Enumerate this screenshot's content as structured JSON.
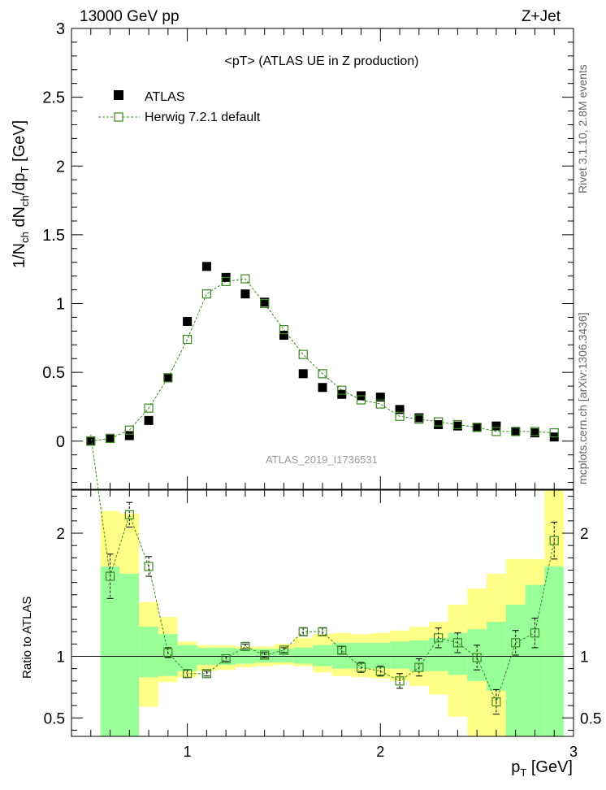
{
  "header": {
    "left_label": "13000 GeV pp",
    "right_label": "Z+Jet"
  },
  "side_labels": {
    "rivet": "Rivet 3.1.10, 2.8M events",
    "mcplots": "mcplots.cern.ch [arXiv:1306.3436]"
  },
  "chart_data": [
    {
      "type": "scatter",
      "title": "<pT> (ATLAS UE in Z production)",
      "ylabel": "1/N_ch dN_ch/dp_T [GeV]",
      "xlabel": "",
      "watermark": "ATLAS_2019_I1736531",
      "xlim": [
        0.4,
        3.0
      ],
      "ylim": [
        -0.35,
        3.0
      ],
      "yticks": [
        0,
        0.5,
        1,
        1.5,
        2,
        2.5,
        3
      ],
      "ytick_labels": [
        "0",
        "0.5",
        "1",
        "1.5",
        "2",
        "2.5",
        "3"
      ],
      "legend_position": "top-left",
      "series": [
        {
          "name": "ATLAS",
          "marker": "filled-square",
          "color": "#000000",
          "x": [
            0.5,
            0.6,
            0.7,
            0.8,
            0.9,
            1.0,
            1.1,
            1.2,
            1.3,
            1.4,
            1.5,
            1.6,
            1.7,
            1.8,
            1.9,
            2.0,
            2.1,
            2.2,
            2.3,
            2.4,
            2.5,
            2.6,
            2.7,
            2.8,
            2.9
          ],
          "y": [
            0.0,
            0.02,
            0.04,
            0.15,
            0.46,
            0.87,
            1.27,
            1.19,
            1.07,
            1.01,
            0.77,
            0.49,
            0.39,
            0.34,
            0.33,
            0.32,
            0.23,
            0.17,
            0.12,
            0.11,
            0.1,
            0.11,
            0.07,
            0.06,
            0.03
          ]
        },
        {
          "name": "Herwig 7.2.1 default",
          "marker": "open-square-dashed-line",
          "color": "#3a8a1f",
          "x": [
            0.5,
            0.6,
            0.7,
            0.8,
            0.9,
            1.0,
            1.1,
            1.2,
            1.3,
            1.4,
            1.5,
            1.6,
            1.7,
            1.8,
            1.9,
            2.0,
            2.1,
            2.2,
            2.3,
            2.4,
            2.5,
            2.6,
            2.7,
            2.8,
            2.9
          ],
          "y": [
            0.0,
            0.02,
            0.08,
            0.24,
            0.46,
            0.74,
            1.07,
            1.16,
            1.18,
            1.0,
            0.81,
            0.63,
            0.49,
            0.37,
            0.3,
            0.27,
            0.18,
            0.16,
            0.14,
            0.12,
            0.1,
            0.07,
            0.07,
            0.07,
            0.06
          ]
        }
      ]
    },
    {
      "type": "line",
      "ylabel": "Ratio to ATLAS",
      "xlabel": "p_T [GeV]",
      "xlim": [
        0.4,
        3.0
      ],
      "ylim": [
        0.35,
        2.35
      ],
      "xticks": [
        1,
        2,
        3
      ],
      "xtick_labels": [
        "1",
        "2",
        "3"
      ],
      "yticks": [
        0.5,
        1,
        2
      ],
      "ytick_labels": [
        "0.5",
        "1",
        "2"
      ],
      "reference_line": 1,
      "uncertainty_bands": {
        "bin_edges": [
          0.55,
          0.65,
          0.75,
          0.85,
          0.95,
          1.05,
          1.15,
          1.25,
          1.35,
          1.45,
          1.55,
          1.65,
          1.75,
          1.85,
          1.95,
          2.05,
          2.15,
          2.25,
          2.35,
          2.45,
          2.55,
          2.65,
          2.75,
          2.85,
          2.95
        ],
        "stat_color": "#99ff99",
        "total_color": "#ffff88",
        "inner_low": [
          0.35,
          0.35,
          0.83,
          0.84,
          0.88,
          0.93,
          0.93,
          0.94,
          0.95,
          0.95,
          0.94,
          0.92,
          0.9,
          0.9,
          0.9,
          0.9,
          0.88,
          0.88,
          0.85,
          0.8,
          0.72,
          0.35,
          0.35,
          0.35
        ],
        "inner_high": [
          1.73,
          1.67,
          1.24,
          1.18,
          1.09,
          1.07,
          1.07,
          1.06,
          1.06,
          1.06,
          1.07,
          1.09,
          1.11,
          1.11,
          1.11,
          1.12,
          1.13,
          1.15,
          1.19,
          1.22,
          1.28,
          1.42,
          1.58,
          1.73
        ],
        "outer_low": [
          0.35,
          0.47,
          0.59,
          0.79,
          0.83,
          0.88,
          0.89,
          0.91,
          0.92,
          0.93,
          0.92,
          0.87,
          0.84,
          0.83,
          0.82,
          0.8,
          0.76,
          0.69,
          0.51,
          0.35,
          0.35,
          0.35,
          0.35,
          0.35
        ],
        "outer_high": [
          2.18,
          2.16,
          1.44,
          1.32,
          1.12,
          1.09,
          1.09,
          1.08,
          1.08,
          1.1,
          1.15,
          1.18,
          1.19,
          1.18,
          1.19,
          1.21,
          1.24,
          1.28,
          1.42,
          1.55,
          1.67,
          1.79,
          1.79,
          2.35
        ]
      },
      "series": [
        {
          "name": "Herwig 7.2.1 default",
          "color": "#3a8a1f",
          "x": [
            0.5,
            0.6,
            0.7,
            0.8,
            0.9,
            1.0,
            1.1,
            1.2,
            1.3,
            1.4,
            1.5,
            1.6,
            1.7,
            1.8,
            1.9,
            2.0,
            2.1,
            2.2,
            2.3,
            2.4,
            2.5,
            2.6,
            2.7,
            2.8,
            2.9
          ],
          "y": [
            2.8,
            1.65,
            2.15,
            1.73,
            1.03,
            0.86,
            0.86,
            0.98,
            1.08,
            1.01,
            1.05,
            1.2,
            1.2,
            1.05,
            0.91,
            0.88,
            0.8,
            0.91,
            1.15,
            1.11,
            0.99,
            0.63,
            1.11,
            1.19,
            1.94
          ],
          "err": [
            0.0,
            0.18,
            0.1,
            0.08,
            0.04,
            0.03,
            0.02,
            0.02,
            0.02,
            0.02,
            0.02,
            0.03,
            0.03,
            0.03,
            0.04,
            0.04,
            0.06,
            0.07,
            0.08,
            0.08,
            0.1,
            0.1,
            0.1,
            0.12,
            0.15
          ]
        }
      ]
    }
  ]
}
